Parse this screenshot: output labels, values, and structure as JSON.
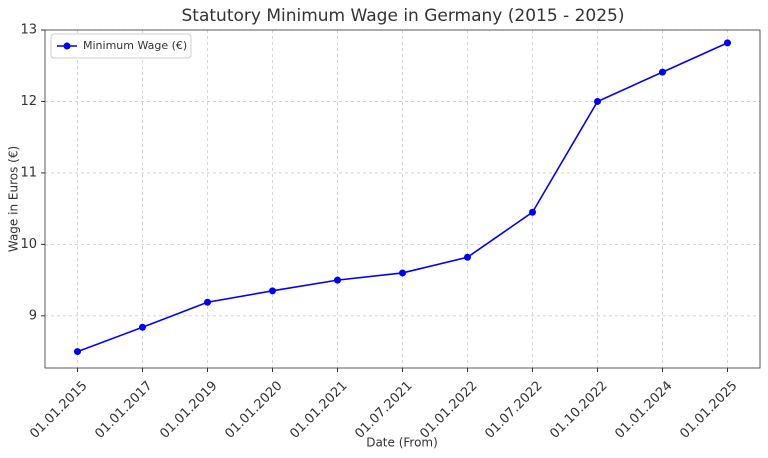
{
  "chart_data": {
    "type": "line",
    "title": "Statutory Minimum Wage in Germany (2015 - 2025)",
    "x_label": "Date (From)",
    "y_label": "Wage in Euros (€)",
    "categories": [
      "01.01.2015",
      "01.01.2017",
      "01.01.2019",
      "01.01.2020",
      "01.01.2021",
      "01.07.2021",
      "01.01.2022",
      "01.07.2022",
      "01.10.2022",
      "01.01.2024",
      "01.01.2025"
    ],
    "series": [
      {
        "name": "Minimum Wage (€)",
        "color": "#0000ff",
        "values": [
          8.5,
          8.84,
          9.19,
          9.35,
          9.5,
          9.6,
          9.82,
          10.45,
          12.0,
          12.41,
          12.82
        ]
      }
    ],
    "ylim": [
      8.27,
      13
    ],
    "yticks": [
      9,
      10,
      11,
      12,
      13
    ],
    "grid": true,
    "legend": "upper left"
  }
}
